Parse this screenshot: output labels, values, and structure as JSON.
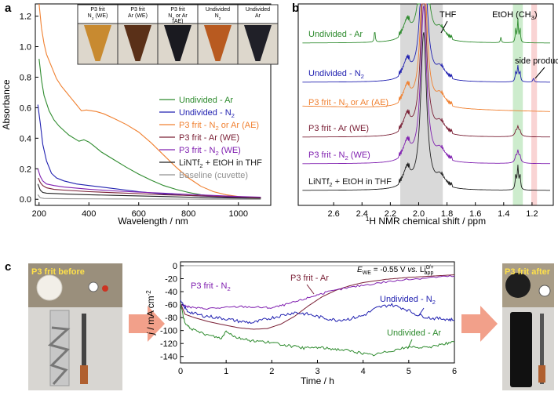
{
  "chart_data": [
    {
      "panel": "a",
      "type": "line",
      "xlabel": "Wavelength / nm",
      "ylabel": "Absorbance",
      "xlim": [
        185,
        1130
      ],
      "ylim": [
        -0.04,
        1.28
      ],
      "xticks": [
        200,
        400,
        600,
        800,
        1000
      ],
      "yticks": [
        0.0,
        0.2,
        0.4,
        0.6,
        0.8,
        1.0,
        1.2
      ],
      "legend_position": "right",
      "series": [
        {
          "name": "Undivided - Ar",
          "color": "#2e8b2e",
          "points": [
            [
              200,
              0.92
            ],
            [
              210,
              0.78
            ],
            [
              220,
              0.68
            ],
            [
              240,
              0.58
            ],
            [
              260,
              0.52
            ],
            [
              280,
              0.48
            ],
            [
              300,
              0.45
            ],
            [
              320,
              0.42
            ],
            [
              340,
              0.4
            ],
            [
              360,
              0.38
            ],
            [
              380,
              0.39
            ],
            [
              400,
              0.375
            ],
            [
              420,
              0.35
            ],
            [
              450,
              0.31
            ],
            [
              500,
              0.26
            ],
            [
              550,
              0.21
            ],
            [
              600,
              0.165
            ],
            [
              650,
              0.125
            ],
            [
              700,
              0.09
            ],
            [
              750,
              0.065
            ],
            [
              800,
              0.045
            ],
            [
              850,
              0.03
            ],
            [
              900,
              0.02
            ],
            [
              950,
              0.015
            ],
            [
              1000,
              0.01
            ],
            [
              1050,
              0.008
            ],
            [
              1090,
              0.006
            ]
          ]
        },
        {
          "name": "Undivided - N2",
          "label_main": "Undivided - N",
          "label_sub": "2",
          "label_tail": "",
          "color": "#2020b0",
          "points": [
            [
              195,
              0.62
            ],
            [
              205,
              0.5
            ],
            [
              215,
              0.36
            ],
            [
              230,
              0.25
            ],
            [
              250,
              0.17
            ],
            [
              270,
              0.14
            ],
            [
              300,
              0.12
            ],
            [
              350,
              0.1
            ],
            [
              400,
              0.09
            ],
            [
              450,
              0.08
            ],
            [
              500,
              0.07
            ],
            [
              550,
              0.06
            ],
            [
              600,
              0.05
            ],
            [
              700,
              0.035
            ],
            [
              800,
              0.025
            ],
            [
              900,
              0.018
            ],
            [
              1000,
              0.012
            ],
            [
              1090,
              0.008
            ]
          ]
        },
        {
          "name": "P3 frit - N2 or Ar (AE)",
          "label_main": "P3 frit - N",
          "label_sub": "2",
          "label_tail": " or Ar (AE)",
          "color": "#f08030",
          "points": [
            [
              200,
              1.28
            ],
            [
              210,
              1.12
            ],
            [
              220,
              1.02
            ],
            [
              230,
              0.95
            ],
            [
              250,
              0.87
            ],
            [
              270,
              0.79
            ],
            [
              290,
              0.74
            ],
            [
              310,
              0.7
            ],
            [
              330,
              0.66
            ],
            [
              350,
              0.62
            ],
            [
              370,
              0.58
            ],
            [
              390,
              0.585
            ],
            [
              410,
              0.58
            ],
            [
              430,
              0.575
            ],
            [
              460,
              0.56
            ],
            [
              500,
              0.53
            ],
            [
              550,
              0.49
            ],
            [
              600,
              0.44
            ],
            [
              650,
              0.37
            ],
            [
              700,
              0.29
            ],
            [
              750,
              0.21
            ],
            [
              800,
              0.14
            ],
            [
              850,
              0.085
            ],
            [
              900,
              0.05
            ],
            [
              950,
              0.03
            ],
            [
              1000,
              0.018
            ],
            [
              1050,
              0.012
            ],
            [
              1090,
              0.01
            ]
          ]
        },
        {
          "name": "P3 frit - Ar (WE)",
          "color": "#7a2036",
          "points": [
            [
              197,
              0.14
            ],
            [
              205,
              0.11
            ],
            [
              215,
              0.09
            ],
            [
              230,
              0.075
            ],
            [
              260,
              0.065
            ],
            [
              300,
              0.06
            ],
            [
              400,
              0.05
            ],
            [
              500,
              0.043
            ],
            [
              600,
              0.037
            ],
            [
              700,
              0.03
            ],
            [
              800,
              0.025
            ],
            [
              900,
              0.02
            ],
            [
              1000,
              0.015
            ],
            [
              1090,
              0.012
            ]
          ]
        },
        {
          "name": "P3 frit - N2 (WE)",
          "label_main": "P3 frit - N",
          "label_sub": "2",
          "label_tail": " (WE)",
          "color": "#8020b0",
          "points": [
            [
              195,
              0.2
            ],
            [
              205,
              0.15
            ],
            [
              215,
              0.12
            ],
            [
              230,
              0.1
            ],
            [
              260,
              0.09
            ],
            [
              300,
              0.08
            ],
            [
              400,
              0.066
            ],
            [
              500,
              0.055
            ],
            [
              600,
              0.047
            ],
            [
              700,
              0.04
            ],
            [
              800,
              0.032
            ],
            [
              900,
              0.025
            ],
            [
              1000,
              0.018
            ],
            [
              1090,
              0.014
            ]
          ]
        },
        {
          "name": "LiNTf2 + EtOH in THF",
          "label_main": "LiNTf",
          "label_sub": "2",
          "label_tail": " + EtOH in THF",
          "color": "#202020",
          "points": [
            [
              195,
              0.1
            ],
            [
              205,
              0.06
            ],
            [
              215,
              0.045
            ],
            [
              230,
              0.04
            ],
            [
              300,
              0.035
            ],
            [
              400,
              0.03
            ],
            [
              500,
              0.026
            ],
            [
              600,
              0.022
            ],
            [
              700,
              0.018
            ],
            [
              800,
              0.014
            ],
            [
              900,
              0.01
            ],
            [
              1000,
              0.008
            ],
            [
              1090,
              0.006
            ]
          ]
        },
        {
          "name": "Baseline (cuvette)",
          "color": "#909090",
          "points": [
            [
              195,
              0.03
            ],
            [
              205,
              0.01
            ],
            [
              220,
              0.005
            ],
            [
              300,
              0.003
            ],
            [
              500,
              0.002
            ],
            [
              800,
              0.001
            ],
            [
              1090,
              0.0
            ]
          ]
        }
      ],
      "inset_photos": [
        {
          "label": "P3 frit\nN2 (WE)",
          "line1": "P3 frit",
          "line2_main": "N",
          "line2_sub": "2",
          "line2_tail": " (WE)",
          "liquid_color": "#c88a30"
        },
        {
          "label": "P3 frit\nAr (WE)",
          "line1": "P3 frit",
          "line2_main": "Ar (WE)",
          "line2_sub": "",
          "line2_tail": "",
          "liquid_color": "#5a3018"
        },
        {
          "label": "P3 frit\nN2 or Ar\n(AE)",
          "line1": "P3 frit",
          "line2_main": "N",
          "line2_sub": "2",
          "line2_tail": " or Ar",
          "line3": "(AE)",
          "liquid_color": "#1a1a20"
        },
        {
          "label": "Undivided\nN2",
          "line1": "Undivided",
          "line2_main": "N",
          "line2_sub": "2",
          "line2_tail": "",
          "liquid_color": "#b85a20"
        },
        {
          "label": "Undivided\nAr",
          "line1": "Undivided",
          "line2_main": "Ar",
          "line2_sub": "",
          "line2_tail": "",
          "liquid_color": "#202028"
        }
      ]
    },
    {
      "panel": "b",
      "type": "line",
      "xlabel": "1H NMR chemical shift / ppm",
      "xlabel_sup": "1",
      "xlabel_main": "H NMR chemical shift / ppm",
      "xlim": [
        2.85,
        1.05
      ],
      "reversed_x": true,
      "xticks": [
        2.6,
        2.4,
        2.2,
        2.0,
        1.8,
        1.6,
        1.4,
        1.2
      ],
      "shaded_regions": [
        {
          "range": [
            2.13,
            1.83
          ],
          "color": "#d9d9d9"
        },
        {
          "range": [
            1.335,
            1.265
          ],
          "color": "#cdeccd"
        },
        {
          "range": [
            1.205,
            1.165
          ],
          "color": "#f9d4d4"
        }
      ],
      "annotations": [
        {
          "text": "THF",
          "at_ppm": 1.82
        },
        {
          "text": "EtOH (CH3)",
          "text_main": "EtOH (CH",
          "text_sub": "3",
          "text_tail": ")",
          "at_ppm": 1.3
        },
        {
          "text": "side product",
          "at_ppm": 1.2
        }
      ],
      "traces": [
        {
          "name": "Undivided - Ar",
          "color": "#2e8b2e"
        },
        {
          "name": "Undivided - N2",
          "label_main": "Undivided - N",
          "label_sub": "2",
          "label_tail": "",
          "color": "#2020b0"
        },
        {
          "name": "P3 frit - N2 or Ar (AE)",
          "label_main": "P3 frit - N",
          "label_sub": "2",
          "label_tail": " or Ar (AE)",
          "color": "#f08030"
        },
        {
          "name": "P3 frit - Ar (WE)",
          "color": "#7a2036"
        },
        {
          "name": "P3 frit - N2 (WE)",
          "label_main": "P3 frit - N",
          "label_sub": "2",
          "label_tail": " (WE)",
          "color": "#8020b0"
        },
        {
          "name": "LiNTf2 + EtOH in THF",
          "label_main": "LiNTf",
          "label_sub": "2",
          "label_tail": " + EtOH in THF",
          "color": "#202020"
        }
      ]
    },
    {
      "panel": "c",
      "type": "line",
      "xlabel": "Time / h",
      "ylabel": "j / mA cm-2",
      "xlim": [
        0,
        6
      ],
      "ylim": [
        -150,
        6
      ],
      "xticks": [
        0,
        1,
        2,
        3,
        4,
        5,
        6
      ],
      "yticks": [
        0,
        -20,
        -40,
        -60,
        -80,
        -100,
        -120,
        -140
      ],
      "condition": "EWE = -0.55 V vs. Li0/+ app",
      "series": [
        {
          "name": "P3 frit - Ar",
          "color": "#7a2036",
          "points": [
            [
              0,
              -58
            ],
            [
              0.1,
              -75
            ],
            [
              0.3,
              -80
            ],
            [
              0.6,
              -86
            ],
            [
              1.0,
              -92
            ],
            [
              1.3,
              -96
            ],
            [
              1.6,
              -98
            ],
            [
              1.9,
              -97
            ],
            [
              2.2,
              -90
            ],
            [
              2.5,
              -78
            ],
            [
              2.8,
              -62
            ],
            [
              3.1,
              -48
            ],
            [
              3.4,
              -38
            ],
            [
              3.7,
              -31
            ],
            [
              4.0,
              -26
            ],
            [
              4.5,
              -21
            ],
            [
              5.0,
              -18
            ],
            [
              5.5,
              -16
            ],
            [
              6.0,
              -14
            ]
          ]
        },
        {
          "name": "P3 frit - N2",
          "label_main": "P3 frit - N",
          "label_sub": "2",
          "label_tail": "",
          "color": "#8020b0",
          "points": [
            [
              0,
              -60
            ],
            [
              0.2,
              -64
            ],
            [
              0.5,
              -66
            ],
            [
              0.9,
              -65
            ],
            [
              1.3,
              -63
            ],
            [
              1.7,
              -64
            ],
            [
              2.0,
              -65
            ],
            [
              2.3,
              -60
            ],
            [
              2.6,
              -54
            ],
            [
              2.9,
              -47
            ],
            [
              3.2,
              -41
            ],
            [
              3.6,
              -35
            ],
            [
              4.0,
              -30
            ],
            [
              4.5,
              -25
            ],
            [
              5.0,
              -21
            ],
            [
              5.5,
              -18
            ],
            [
              6.0,
              -16
            ]
          ]
        },
        {
          "name": "Undivided - N2",
          "label_main": "Undivided - N",
          "label_sub": "2",
          "label_tail": "",
          "color": "#2020b0",
          "points": [
            [
              0,
              -55
            ],
            [
              0.15,
              -70
            ],
            [
              0.4,
              -76
            ],
            [
              0.7,
              -79
            ],
            [
              1.0,
              -82
            ],
            [
              1.3,
              -86
            ],
            [
              1.6,
              -88
            ],
            [
              1.9,
              -82
            ],
            [
              2.2,
              -77
            ],
            [
              2.5,
              -72
            ],
            [
              2.8,
              -75
            ],
            [
              3.1,
              -80
            ],
            [
              3.4,
              -84
            ],
            [
              3.7,
              -82
            ],
            [
              4.0,
              -77
            ],
            [
              4.3,
              -65
            ],
            [
              4.6,
              -60
            ],
            [
              4.9,
              -66
            ],
            [
              5.2,
              -76
            ],
            [
              5.5,
              -81
            ],
            [
              5.8,
              -82
            ],
            [
              6.0,
              -84
            ]
          ]
        },
        {
          "name": "Undivided - Ar",
          "color": "#2e8b2e",
          "points": [
            [
              0,
              -58
            ],
            [
              0.1,
              -90
            ],
            [
              0.3,
              -100
            ],
            [
              0.6,
              -107
            ],
            [
              0.9,
              -112
            ],
            [
              1.0,
              -100
            ],
            [
              1.2,
              -110
            ],
            [
              1.5,
              -115
            ],
            [
              1.8,
              -117
            ],
            [
              2.1,
              -120
            ],
            [
              2.4,
              -124
            ],
            [
              2.7,
              -127
            ],
            [
              3.0,
              -126
            ],
            [
              3.3,
              -128
            ],
            [
              3.6,
              -130
            ],
            [
              3.9,
              -134
            ],
            [
              4.2,
              -138
            ],
            [
              4.5,
              -133
            ],
            [
              4.8,
              -128
            ],
            [
              5.1,
              -125
            ],
            [
              5.4,
              -127
            ],
            [
              5.7,
              -121
            ],
            [
              6.0,
              -118
            ]
          ]
        }
      ],
      "photo_labels": {
        "before": "P3 frit before",
        "after": "P3 frit after"
      }
    }
  ]
}
